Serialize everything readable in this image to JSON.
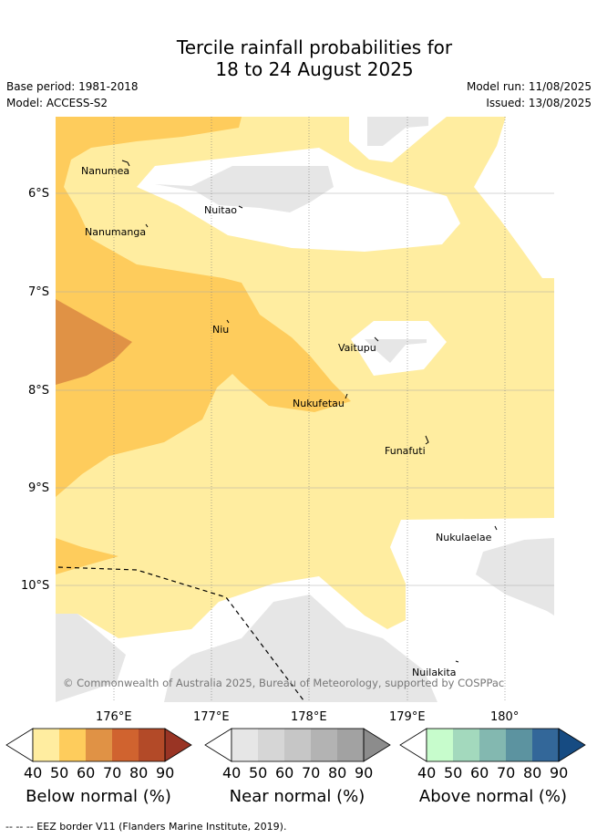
{
  "header": {
    "title_line1": "Tercile rainfall probabilities for",
    "title_line2": "18 to 24 August 2025",
    "base_period": "Base period: 1981-2018",
    "model": "Model: ACCESS-S2",
    "model_run": "Model run: 11/08/2025",
    "issued": "Issued: 13/08/2025"
  },
  "map": {
    "lat_labels": [
      "6°S",
      "7°S",
      "8°S",
      "9°S",
      "10°S"
    ],
    "lon_labels": [
      "176°E",
      "177°E",
      "178°E",
      "179°E",
      "180°"
    ],
    "places": [
      {
        "name": "Nanumea"
      },
      {
        "name": "Nuitao"
      },
      {
        "name": "Nanumanga"
      },
      {
        "name": "Niu"
      },
      {
        "name": "Vaitupu"
      },
      {
        "name": "Nukufetau"
      },
      {
        "name": "Funafuti"
      },
      {
        "name": "Nukulaelae"
      },
      {
        "name": "Nuilakita"
      }
    ],
    "copyright": "© Commonwealth of Australia 2025, Bureau of Meteorology, supported by COSPPac"
  },
  "legends": [
    {
      "title": "Below normal (%)",
      "ticks": [
        "40",
        "50",
        "60",
        "70",
        "80",
        "90"
      ],
      "colors": [
        "#ffeda0",
        "#fecc5c",
        "#e09245",
        "#d0632f",
        "#b34a28",
        "#993424"
      ]
    },
    {
      "title": "Near normal (%)",
      "ticks": [
        "40",
        "50",
        "60",
        "70",
        "80",
        "90"
      ],
      "colors": [
        "#e6e6e6",
        "#d6d6d6",
        "#c6c6c6",
        "#b3b3b3",
        "#a2a2a2",
        "#8c8c8c"
      ]
    },
    {
      "title": "Above normal (%)",
      "ticks": [
        "40",
        "50",
        "60",
        "70",
        "80",
        "90"
      ],
      "colors": [
        "#c7fccc",
        "#a3d9bd",
        "#83b8b0",
        "#5c93a0",
        "#336799",
        "#164b82"
      ]
    }
  ],
  "footnote": "-- -- -- EEZ border V11 (Flanders Marine Institute, 2019)."
}
